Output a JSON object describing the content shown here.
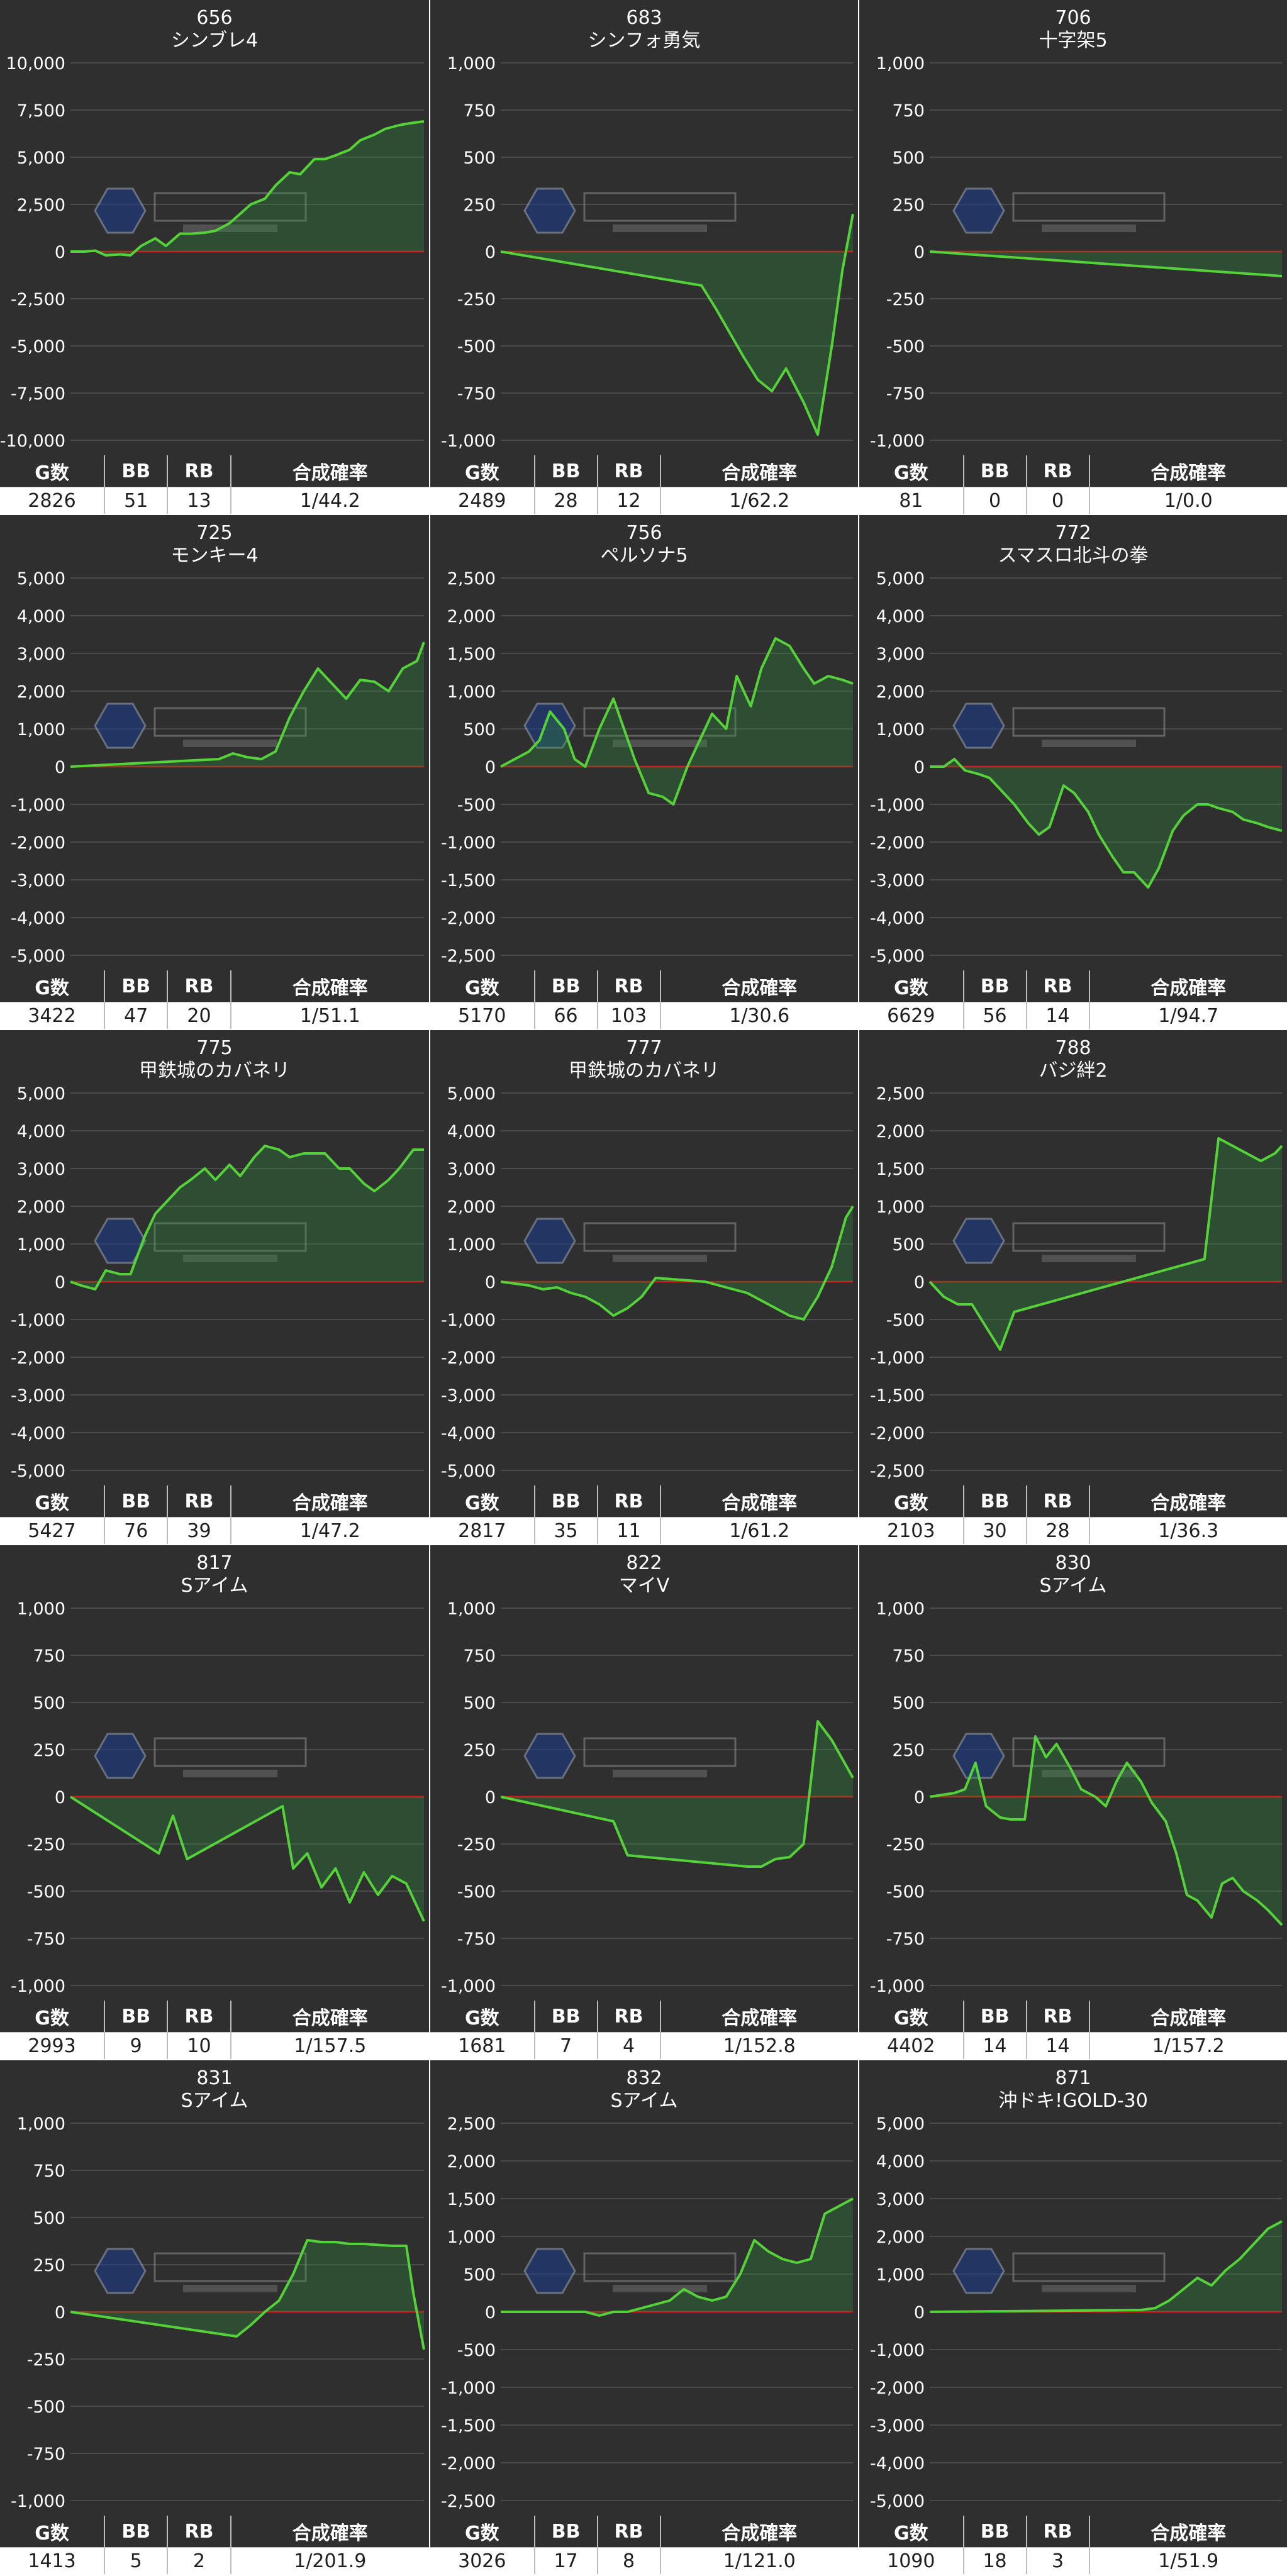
{
  "chart_data": [
    {
      "type": "line",
      "title": "656",
      "subtitle": "シンブレ4",
      "ylim": [
        -10000,
        10000
      ],
      "yticks": [
        "10,000",
        "7,500",
        "5,000",
        "2,500",
        "0",
        "-2,500",
        "-5,000",
        "-7,500",
        "-10,000"
      ],
      "x": [
        0,
        4,
        7,
        10,
        14,
        17,
        20,
        24,
        27,
        31,
        34,
        38,
        41,
        45,
        48,
        51,
        55,
        58,
        62,
        65,
        69,
        72,
        75,
        79,
        82,
        86,
        89,
        93,
        96,
        100
      ],
      "values": [
        0,
        0,
        50,
        -200,
        -150,
        -200,
        300,
        700,
        300,
        950,
        950,
        1000,
        1100,
        1500,
        2000,
        2500,
        2800,
        3500,
        4200,
        4100,
        4900,
        4900,
        5100,
        5400,
        5900,
        6200,
        6500,
        6700,
        6800,
        6900
      ],
      "columns": [
        "G数",
        "BB",
        "RB",
        "合成確率"
      ],
      "stats": [
        "2826",
        "51",
        "13",
        "1/44.2"
      ]
    },
    {
      "type": "line",
      "title": "683",
      "subtitle": "シンフォ勇気",
      "ylim": [
        -1000,
        1000
      ],
      "yticks": [
        "1,000",
        "750",
        "500",
        "250",
        "0",
        "-250",
        "-500",
        "-750",
        "-1,000"
      ],
      "x": [
        0,
        57,
        61,
        65,
        69,
        73,
        77,
        81,
        86,
        90,
        94,
        97,
        100
      ],
      "values": [
        0,
        -180,
        -300,
        -430,
        -560,
        -680,
        -740,
        -620,
        -800,
        -970,
        -500,
        -100,
        200
      ],
      "columns": [
        "G数",
        "BB",
        "RB",
        "合成確率"
      ],
      "stats": [
        "2489",
        "28",
        "12",
        "1/62.2"
      ]
    },
    {
      "type": "line",
      "title": "706",
      "subtitle": "十字架5",
      "ylim": [
        -1000,
        1000
      ],
      "yticks": [
        "1,000",
        "750",
        "500",
        "250",
        "0",
        "-250",
        "-500",
        "-750",
        "-1,000"
      ],
      "x": [
        0,
        100
      ],
      "values": [
        0,
        -130
      ],
      "columns": [
        "G数",
        "BB",
        "RB",
        "合成確率"
      ],
      "stats": [
        "81",
        "0",
        "0",
        "1/0.0"
      ]
    },
    {
      "type": "line",
      "title": "725",
      "subtitle": "モンキー4",
      "ylim": [
        -5000,
        5000
      ],
      "yticks": [
        "5,000",
        "4,000",
        "3,000",
        "2,000",
        "1,000",
        "0",
        "-1,000",
        "-2,000",
        "-3,000",
        "-4,000",
        "-5,000"
      ],
      "x": [
        0,
        42,
        46,
        50,
        54,
        58,
        62,
        66,
        70,
        74,
        78,
        82,
        86,
        90,
        94,
        98,
        100
      ],
      "values": [
        0,
        200,
        350,
        250,
        200,
        400,
        1300,
        2000,
        2600,
        2200,
        1800,
        2300,
        2250,
        2000,
        2600,
        2800,
        3300
      ],
      "columns": [
        "G数",
        "BB",
        "RB",
        "合成確率"
      ],
      "stats": [
        "3422",
        "47",
        "20",
        "1/51.1"
      ]
    },
    {
      "type": "line",
      "title": "756",
      "subtitle": "ペルソナ5",
      "ylim": [
        -2500,
        2500
      ],
      "yticks": [
        "2,500",
        "2,000",
        "1,500",
        "1,000",
        "500",
        "0",
        "-500",
        "-1,000",
        "-1,500",
        "-2,000",
        "-2,500"
      ],
      "x": [
        0,
        4,
        8,
        11,
        14,
        18,
        21,
        24,
        28,
        32,
        35,
        38,
        42,
        46,
        49,
        53,
        57,
        60,
        64,
        67,
        71,
        74,
        78,
        82,
        86,
        89,
        93,
        97,
        100
      ],
      "values": [
        0,
        100,
        200,
        350,
        730,
        500,
        100,
        0,
        500,
        900,
        500,
        100,
        -350,
        -400,
        -500,
        0,
        400,
        700,
        500,
        1200,
        800,
        1300,
        1700,
        1600,
        1300,
        1100,
        1200,
        1150,
        1100
      ],
      "columns": [
        "G数",
        "BB",
        "RB",
        "合成確率"
      ],
      "stats": [
        "5170",
        "66",
        "103",
        "1/30.6"
      ]
    },
    {
      "type": "line",
      "title": "772",
      "subtitle": "スマスロ北斗の拳",
      "ylim": [
        -5000,
        5000
      ],
      "yticks": [
        "5,000",
        "4,000",
        "3,000",
        "2,000",
        "1,000",
        "0",
        "-1,000",
        "-2,000",
        "-3,000",
        "-4,000",
        "-5,000"
      ],
      "x": [
        0,
        4,
        7,
        10,
        14,
        17,
        21,
        24,
        28,
        31,
        34,
        38,
        41,
        45,
        48,
        52,
        55,
        58,
        62,
        65,
        69,
        72,
        76,
        79,
        82,
        86,
        89,
        93,
        96,
        100
      ],
      "values": [
        0,
        0,
        200,
        -100,
        -200,
        -300,
        -700,
        -1000,
        -1500,
        -1800,
        -1600,
        -500,
        -700,
        -1200,
        -1800,
        -2400,
        -2800,
        -2800,
        -3200,
        -2700,
        -1700,
        -1300,
        -1000,
        -1000,
        -1100,
        -1200,
        -1400,
        -1500,
        -1600,
        -1700
      ],
      "columns": [
        "G数",
        "BB",
        "RB",
        "合成確率"
      ],
      "stats": [
        "6629",
        "56",
        "14",
        "1/94.7"
      ]
    },
    {
      "type": "line",
      "title": "775",
      "subtitle": "甲鉄城のカバネリ",
      "ylim": [
        -5000,
        5000
      ],
      "yticks": [
        "5,000",
        "4,000",
        "3,000",
        "2,000",
        "1,000",
        "0",
        "-1,000",
        "-2,000",
        "-3,000",
        "-4,000",
        "-5,000"
      ],
      "x": [
        0,
        3,
        7,
        10,
        14,
        17,
        21,
        24,
        28,
        31,
        34,
        38,
        41,
        45,
        48,
        52,
        55,
        59,
        62,
        66,
        69,
        72,
        76,
        79,
        83,
        86,
        90,
        93,
        97,
        100
      ],
      "values": [
        0,
        -100,
        -200,
        300,
        200,
        200,
        1200,
        1800,
        2200,
        2500,
        2700,
        3000,
        2700,
        3100,
        2800,
        3300,
        3600,
        3500,
        3300,
        3400,
        3400,
        3400,
        3000,
        3000,
        2600,
        2400,
        2700,
        3000,
        3500,
        3500
      ],
      "columns": [
        "G数",
        "BB",
        "RB",
        "合成確率"
      ],
      "stats": [
        "5427",
        "76",
        "39",
        "1/47.2"
      ]
    },
    {
      "type": "line",
      "title": "777",
      "subtitle": "甲鉄城のカバネリ",
      "ylim": [
        -5000,
        5000
      ],
      "yticks": [
        "5,000",
        "4,000",
        "3,000",
        "2,000",
        "1,000",
        "0",
        "-1,000",
        "-2,000",
        "-3,000",
        "-4,000",
        "-5,000"
      ],
      "x": [
        0,
        8,
        12,
        16,
        20,
        24,
        28,
        32,
        36,
        40,
        44,
        58,
        62,
        66,
        70,
        74,
        78,
        82,
        86,
        90,
        94,
        98,
        100
      ],
      "values": [
        0,
        -100,
        -200,
        -150,
        -300,
        -400,
        -600,
        -900,
        -700,
        -400,
        100,
        0,
        -100,
        -200,
        -300,
        -500,
        -700,
        -900,
        -1000,
        -400,
        400,
        1700,
        2000
      ],
      "columns": [
        "G数",
        "BB",
        "RB",
        "合成確率"
      ],
      "stats": [
        "2817",
        "35",
        "11",
        "1/61.2"
      ]
    },
    {
      "type": "line",
      "title": "788",
      "subtitle": "バジ絆2",
      "ylim": [
        -2500,
        2500
      ],
      "yticks": [
        "2,500",
        "2,000",
        "1,500",
        "1,000",
        "500",
        "0",
        "-500",
        "-1,000",
        "-1,500",
        "-2,000",
        "-2,500"
      ],
      "x": [
        0,
        4,
        8,
        12,
        16,
        20,
        24,
        78,
        82,
        86,
        90,
        94,
        98,
        100
      ],
      "values": [
        0,
        -200,
        -300,
        -300,
        -600,
        -900,
        -400,
        300,
        1900,
        1800,
        1700,
        1600,
        1700,
        1800
      ],
      "columns": [
        "G数",
        "BB",
        "RB",
        "合成確率"
      ],
      "stats": [
        "2103",
        "30",
        "28",
        "1/36.3"
      ]
    },
    {
      "type": "line",
      "title": "817",
      "subtitle": "Sアイム",
      "ylim": [
        -1000,
        1000
      ],
      "yticks": [
        "1,000",
        "750",
        "500",
        "250",
        "0",
        "-250",
        "-500",
        "-750",
        "-1,000"
      ],
      "x": [
        0,
        25,
        29,
        33,
        60,
        63,
        67,
        71,
        75,
        79,
        83,
        87,
        91,
        95,
        100
      ],
      "values": [
        0,
        -300,
        -100,
        -330,
        -50,
        -380,
        -300,
        -480,
        -380,
        -560,
        -400,
        -520,
        -420,
        -460,
        -660
      ],
      "columns": [
        "G数",
        "BB",
        "RB",
        "合成確率"
      ],
      "stats": [
        "2993",
        "9",
        "10",
        "1/157.5"
      ]
    },
    {
      "type": "line",
      "title": "822",
      "subtitle": "マイV",
      "ylim": [
        -1000,
        1000
      ],
      "yticks": [
        "1,000",
        "750",
        "500",
        "250",
        "0",
        "-250",
        "-500",
        "-750",
        "-1,000"
      ],
      "x": [
        0,
        32,
        36,
        70,
        74,
        78,
        82,
        86,
        90,
        94,
        100
      ],
      "values": [
        0,
        -130,
        -310,
        -370,
        -370,
        -330,
        -320,
        -250,
        400,
        300,
        100
      ],
      "columns": [
        "G数",
        "BB",
        "RB",
        "合成確率"
      ],
      "stats": [
        "1681",
        "7",
        "4",
        "1/152.8"
      ]
    },
    {
      "type": "line",
      "title": "830",
      "subtitle": "Sアイム",
      "ylim": [
        -1000,
        1000
      ],
      "yticks": [
        "1,000",
        "750",
        "500",
        "250",
        "0",
        "-250",
        "-500",
        "-750",
        "-1,000"
      ],
      "x": [
        0,
        7,
        10,
        13,
        16,
        20,
        23,
        27,
        30,
        33,
        36,
        40,
        43,
        47,
        50,
        53,
        56,
        60,
        63,
        67,
        70,
        73,
        76,
        80,
        83,
        86,
        89,
        93,
        96,
        100
      ],
      "values": [
        0,
        20,
        40,
        180,
        -50,
        -110,
        -120,
        -120,
        320,
        210,
        280,
        150,
        40,
        0,
        -50,
        80,
        180,
        80,
        -30,
        -130,
        -300,
        -520,
        -550,
        -640,
        -460,
        -430,
        -500,
        -550,
        -600,
        -680
      ],
      "columns": [
        "G数",
        "BB",
        "RB",
        "合成確率"
      ],
      "stats": [
        "4402",
        "14",
        "14",
        "1/157.2"
      ]
    },
    {
      "type": "line",
      "title": "831",
      "subtitle": "Sアイム",
      "ylim": [
        -1000,
        1000
      ],
      "yticks": [
        "1,000",
        "750",
        "500",
        "250",
        "0",
        "-250",
        "-500",
        "-750",
        "-1,000"
      ],
      "x": [
        0,
        47,
        51,
        55,
        59,
        63,
        67,
        71,
        75,
        79,
        83,
        87,
        91,
        95,
        97,
        100
      ],
      "values": [
        0,
        -130,
        -70,
        0,
        60,
        200,
        380,
        370,
        370,
        360,
        360,
        355,
        350,
        350,
        100,
        -200
      ],
      "columns": [
        "G数",
        "BB",
        "RB",
        "合成確率"
      ],
      "stats": [
        "1413",
        "5",
        "2",
        "1/201.9"
      ]
    },
    {
      "type": "line",
      "title": "832",
      "subtitle": "Sアイム",
      "ylim": [
        -2500,
        2500
      ],
      "yticks": [
        "2,500",
        "2,000",
        "1,500",
        "1,000",
        "500",
        "0",
        "-500",
        "-1,000",
        "-1,500",
        "-2,000",
        "-2,500"
      ],
      "x": [
        0,
        24,
        28,
        32,
        36,
        40,
        44,
        48,
        52,
        56,
        60,
        64,
        68,
        72,
        76,
        80,
        84,
        88,
        92,
        96,
        100
      ],
      "values": [
        0,
        0,
        -50,
        0,
        0,
        50,
        100,
        150,
        300,
        200,
        150,
        200,
        500,
        950,
        800,
        700,
        650,
        700,
        1300,
        1400,
        1500
      ],
      "columns": [
        "G数",
        "BB",
        "RB",
        "合成確率"
      ],
      "stats": [
        "3026",
        "17",
        "8",
        "1/121.0"
      ]
    },
    {
      "type": "line",
      "title": "871",
      "subtitle": "沖ドキ!GOLD-30",
      "ylim": [
        -5000,
        5000
      ],
      "yticks": [
        "5,000",
        "4,000",
        "3,000",
        "2,000",
        "1,000",
        "0",
        "-1,000",
        "-2,000",
        "-3,000",
        "-4,000",
        "-5,000"
      ],
      "x": [
        0,
        60,
        64,
        68,
        72,
        76,
        80,
        84,
        88,
        92,
        96,
        100
      ],
      "values": [
        0,
        50,
        100,
        300,
        600,
        900,
        700,
        1100,
        1400,
        1800,
        2200,
        2400
      ],
      "columns": [
        "G数",
        "BB",
        "RB",
        "合成確率"
      ],
      "stats": [
        "1090",
        "18",
        "3",
        "1/51.9"
      ]
    }
  ]
}
